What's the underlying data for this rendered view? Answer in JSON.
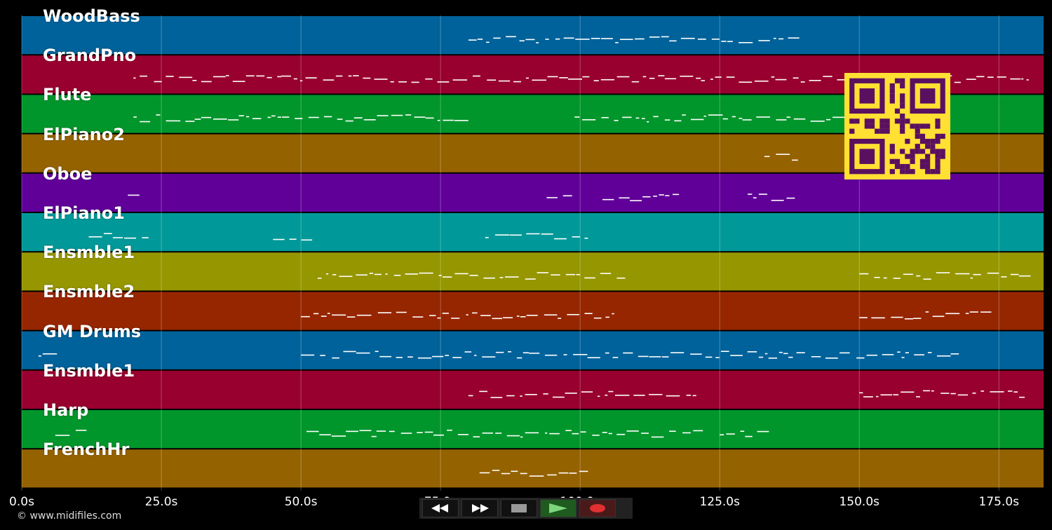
{
  "tracks": [
    {
      "name": "WoodBass",
      "color": "#00629a"
    },
    {
      "name": "GrandPno",
      "color": "#98002f"
    },
    {
      "name": "Flute",
      "color": "#00962b"
    },
    {
      "name": "ElPiano2",
      "color": "#956200"
    },
    {
      "name": "Oboe",
      "color": "#600098"
    },
    {
      "name": "ElPiano1",
      "color": "#009898"
    },
    {
      "name": "Ensmble1",
      "color": "#969600"
    },
    {
      "name": "Ensmble2",
      "color": "#962600"
    },
    {
      "name": "GM Drums",
      "color": "#00629a"
    },
    {
      "name": "Ensmble1",
      "color": "#98002f"
    },
    {
      "name": "Harp",
      "color": "#00962b"
    },
    {
      "name": "FrenchHr",
      "color": "#956200"
    }
  ],
  "timeline": {
    "ticks": [
      "0.0s",
      "25.0s",
      "50.0s",
      "75.0s",
      "100.0s",
      "125.0s",
      "150.0s",
      "175.0s"
    ],
    "tick_seconds": [
      0,
      25,
      50,
      75,
      100,
      125,
      150,
      175
    ],
    "max_seconds": 183
  },
  "transport": {
    "rewind_icon": "rewind-icon",
    "forward_icon": "fast-forward-icon",
    "stop_icon": "stop-icon",
    "play_icon": "play-icon",
    "record_icon": "record-icon"
  },
  "footer": {
    "copyright": "© www.midifiles.com"
  },
  "qr": {
    "icon": "qr-code-icon",
    "fg": "#5a1060",
    "bg": "#ffe033"
  }
}
